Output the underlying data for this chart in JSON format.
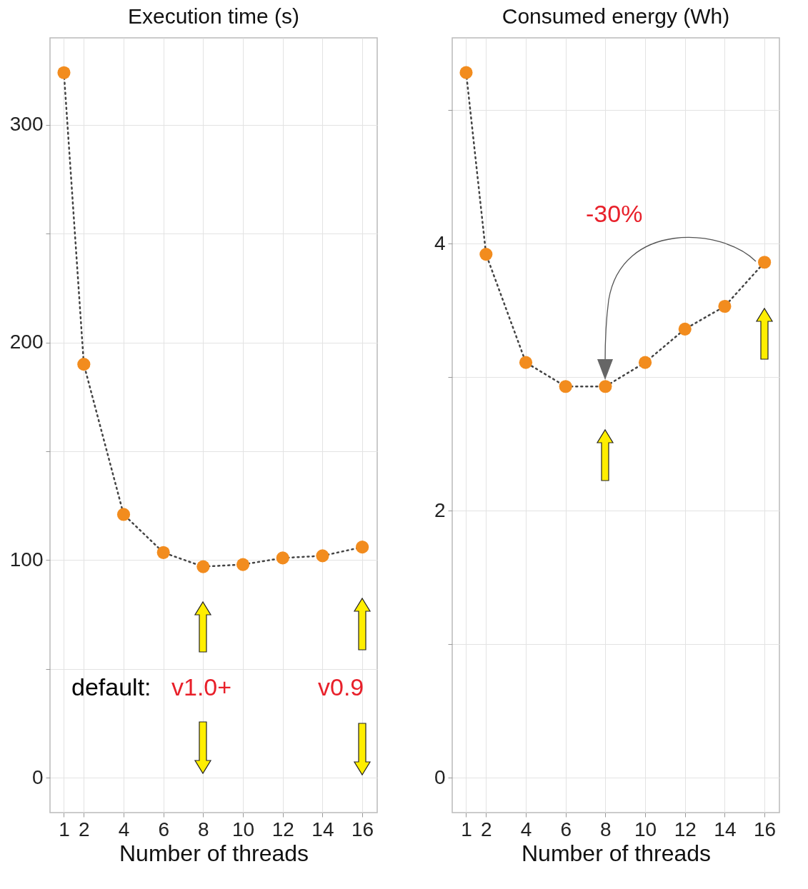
{
  "chart_data": [
    {
      "type": "line",
      "title": "Execution time (s)",
      "xlabel": "Number of threads",
      "x": [
        1,
        2,
        4,
        6,
        8,
        10,
        12,
        14,
        16
      ],
      "series": [
        {
          "color": "#f28c1e",
          "values": [
            324,
            190,
            121,
            103.5,
            97,
            98,
            101,
            102,
            106
          ]
        }
      ],
      "xlim": [
        0.3,
        16.75
      ],
      "xticks": [
        1,
        2,
        4,
        6,
        8,
        10,
        12,
        14,
        16
      ],
      "ylim": [
        -16,
        340
      ],
      "yticks": [
        0,
        {
          "value": 50,
          "label": null
        },
        100,
        {
          "value": 150,
          "label": null
        },
        200,
        {
          "value": 250,
          "label": null
        },
        300
      ],
      "grid": true,
      "marker": "circle",
      "line_style": "dotted",
      "annotations": [
        "default:",
        "v1.0+",
        "v0.9"
      ]
    },
    {
      "type": "line",
      "title": "Consumed energy (Wh)",
      "xlabel": "Number of threads",
      "x": [
        1,
        2,
        4,
        6,
        8,
        10,
        12,
        14,
        16
      ],
      "series": [
        {
          "color": "#f28c1e",
          "values": [
            5.28,
            3.92,
            3.11,
            2.93,
            2.93,
            3.11,
            3.36,
            3.53,
            3.86
          ]
        }
      ],
      "xlim": [
        0.3,
        16.75
      ],
      "xticks": [
        1,
        2,
        4,
        6,
        8,
        10,
        12,
        14,
        16
      ],
      "ylim": [
        -0.26,
        5.54
      ],
      "yticks": [
        0,
        {
          "value": 1,
          "label": null
        },
        2,
        {
          "value": 3,
          "label": null
        },
        4,
        {
          "value": 5,
          "label": null
        }
      ],
      "grid": true,
      "marker": "circle",
      "line_style": "dotted",
      "annotations": [
        "-30%"
      ]
    }
  ]
}
